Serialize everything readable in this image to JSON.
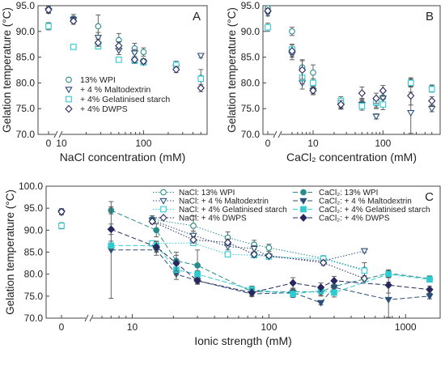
{
  "styles": {
    "13% WPI": {
      "color": "#2a8c8a",
      "marker": "circle-open"
    },
    "+ 4 % Maltodextrin": {
      "color": "#2a4f7a",
      "marker": "triangle-open"
    },
    "+ 4% Gelatinised starch": {
      "color": "#2ecbd3",
      "marker": "square-open"
    },
    "+ 4% DWPS": {
      "color": "#26285e",
      "marker": "diamond-open"
    },
    "NaCl: 13% WPI": {
      "color": "#2a8c8a",
      "marker": "circle-open",
      "dash": "dotted"
    },
    "NaCl: + 4 % Maltodextrin": {
      "color": "#2a4f7a",
      "marker": "triangle-open",
      "dash": "dotted"
    },
    "NaCl: + 4% Gelatinised starch": {
      "color": "#2ecbd3",
      "marker": "square-open",
      "dash": "dotted"
    },
    "NaCl: + 4% DWPS": {
      "color": "#26285e",
      "marker": "diamond-open",
      "dash": "dotted"
    },
    "CaCl2: 13% WPI": {
      "color": "#2a8c8a",
      "marker": "circle",
      "dash": "dashed"
    },
    "CaCl2: + 4 % Maltodextrin": {
      "color": "#2a4f7a",
      "marker": "triangle",
      "dash": "dashed"
    },
    "CaCl2: + 4% Gelatinised starch": {
      "color": "#2ecbd3",
      "marker": "square",
      "dash": "dashed"
    },
    "CaCl2: + 4% DWPS": {
      "color": "#26285e",
      "marker": "diamond",
      "dash": "dashed"
    }
  },
  "chart_data": [
    {
      "panel": "A",
      "type": "scatter",
      "xlabel": "NaCl concentration (mM)",
      "ylabel": "Gelation temperature (°C)",
      "xscale": "log-broken",
      "ylim": [
        70,
        95
      ],
      "yticks": [
        "70.0",
        "75.0",
        "80.0",
        "85.0",
        "90.0",
        "95.0"
      ],
      "xticks": [
        "0",
        "10",
        "100"
      ],
      "legend_position": "bottom-left",
      "legend": [
        "13% WPI",
        "+ 4 % Maltodextrin",
        "+ 4% Gelatinised starch",
        "+ 4% DWPS"
      ],
      "series": [
        {
          "name": "13% WPI",
          "x": [
            0,
            14,
            28,
            50,
            78,
            100,
            250,
            500
          ],
          "y": [
            94.3,
            92.5,
            91.0,
            88.3,
            86.7,
            86.0,
            83.6,
            81.0
          ],
          "err": [
            0.6,
            0.8,
            2.2,
            1.3,
            1.0,
            0.8,
            0.6,
            1.6
          ]
        },
        {
          "name": "+ 4 % Maltodextrin",
          "x": [
            0,
            14,
            28,
            50,
            78,
            100,
            250,
            500
          ],
          "y": [
            94.0,
            92.3,
            88.8,
            86.3,
            85.8,
            84.0,
            83.0,
            85.3
          ],
          "err": [
            0.5,
            0.6,
            1.0,
            0.8,
            0.7,
            0.5,
            0.6,
            0.4
          ]
        },
        {
          "name": "+ 4% Gelatinised starch",
          "x": [
            0,
            14,
            28,
            50,
            78,
            100,
            250,
            500
          ],
          "y": [
            91.0,
            87.0,
            87.1,
            84.5,
            84.3,
            84.0,
            83.5,
            80.8
          ],
          "err": [
            0.7,
            0.4,
            0.5,
            0.5,
            0.4,
            0.4,
            0.4,
            0.5
          ]
        },
        {
          "name": "+ 4% DWPS",
          "x": [
            0,
            14,
            28,
            50,
            78,
            100,
            250,
            500
          ],
          "y": [
            94.2,
            92.0,
            87.8,
            87.2,
            84.5,
            84.2,
            82.6,
            79.0
          ],
          "err": [
            0.5,
            0.6,
            0.7,
            0.8,
            0.6,
            0.5,
            0.6,
            0.7
          ]
        }
      ]
    },
    {
      "panel": "B",
      "type": "scatter",
      "xlabel": "CaCl2 concentration (mM)",
      "ylabel": "Gelation temperature (°C)",
      "xscale": "log-broken",
      "ylim": [
        70,
        95
      ],
      "yticks": [
        "70.0",
        "75.0",
        "80.0",
        "85.0",
        "90.0",
        "95.0"
      ],
      "xticks": [
        "0",
        "10",
        "100"
      ],
      "series": [
        {
          "name": "13% WPI",
          "x": [
            0,
            5,
            7,
            10,
            25,
            50,
            80,
            100,
            250,
            500
          ],
          "y": [
            94.5,
            90.0,
            83.0,
            82.0,
            76.0,
            76.0,
            76.0,
            77.2,
            80.2,
            79.0
          ],
          "err": [
            0.5,
            0.8,
            1.5,
            1.5,
            0.8,
            1.0,
            1.0,
            1.0,
            0.8,
            0.6
          ]
        },
        {
          "name": "+ 4 % Maltodextrin",
          "x": [
            0,
            5,
            7,
            10,
            25,
            50,
            80,
            100,
            250,
            500
          ],
          "y": [
            93.5,
            85.5,
            80.0,
            78.5,
            75.5,
            75.8,
            73.5,
            77.0,
            74.2,
            75.0
          ],
          "err": [
            0.5,
            1.0,
            1.2,
            0.8,
            0.6,
            0.8,
            0.5,
            1.5,
            4.0,
            0.6
          ]
        },
        {
          "name": "+ 4% Gelatinised starch",
          "x": [
            0,
            5,
            7,
            10,
            25,
            50,
            80,
            100,
            250,
            500
          ],
          "y": [
            90.8,
            86.5,
            81.0,
            80.0,
            76.5,
            75.5,
            76.2,
            75.8,
            80.0,
            78.8
          ],
          "err": [
            0.8,
            1.0,
            1.2,
            0.8,
            0.8,
            0.8,
            1.0,
            1.0,
            0.8,
            0.6
          ]
        },
        {
          "name": "+ 4% DWPS",
          "x": [
            0,
            5,
            7,
            10,
            25,
            50,
            80,
            100,
            250,
            500
          ],
          "y": [
            94.0,
            86.2,
            82.5,
            78.5,
            75.8,
            78.0,
            77.0,
            78.5,
            77.5,
            76.5
          ],
          "err": [
            0.5,
            1.2,
            1.8,
            0.6,
            0.8,
            1.2,
            1.0,
            1.0,
            1.8,
            0.8
          ]
        }
      ]
    },
    {
      "panel": "C",
      "type": "line",
      "xlabel": "Ionic strength (mM)",
      "ylabel": "Gelation temperature (°C)",
      "xscale": "log-broken",
      "ylim": [
        70,
        100
      ],
      "yticks": [
        "70.0",
        "75.0",
        "80.0",
        "85.0",
        "90.0",
        "95.0",
        "100.0"
      ],
      "xticks": [
        "0",
        "10",
        "100",
        "1000"
      ],
      "legend_position": "top",
      "legend": [
        "NaCl: 13% WPI",
        "NaCl: + 4 % Maltodextrin",
        "NaCl: + 4% Gelatinised starch",
        "NaCl: + 4% DWPS",
        "CaCl2: 13% WPI",
        "CaCl2: + 4 % Maltodextrin",
        "CaCl2: + 4% Gelatinised starch",
        "CaCl2: + 4% DWPS"
      ],
      "zero_points": [
        {
          "name": "13% WPI",
          "y": 94.3,
          "err": 0.6
        },
        {
          "name": "+ 4 % Maltodextrin",
          "y": 94.0,
          "err": 0.5
        },
        {
          "name": "+ 4% Gelatinised starch",
          "y": 91.0,
          "err": 0.7
        },
        {
          "name": "+ 4% DWPS",
          "y": 94.2,
          "err": 0.5
        }
      ],
      "series": [
        {
          "name": "NaCl: 13% WPI",
          "x": [
            14,
            28,
            50,
            78,
            100,
            250,
            500
          ],
          "y": [
            92.5,
            91.0,
            88.3,
            86.7,
            86.0,
            83.6,
            81.0
          ],
          "err": [
            0.8,
            2.2,
            1.3,
            1.0,
            0.8,
            0.6,
            1.6
          ]
        },
        {
          "name": "NaCl: + 4 % Maltodextrin",
          "x": [
            14,
            28,
            50,
            78,
            100,
            250,
            500
          ],
          "y": [
            92.3,
            88.8,
            86.3,
            85.8,
            84.0,
            83.0,
            85.3
          ],
          "err": [
            0.6,
            1.0,
            0.8,
            0.7,
            0.5,
            0.6,
            0.4
          ]
        },
        {
          "name": "NaCl: + 4% Gelatinised starch",
          "x": [
            14,
            28,
            50,
            78,
            100,
            250,
            500
          ],
          "y": [
            87.0,
            87.1,
            84.5,
            84.3,
            84.0,
            83.5,
            80.8
          ],
          "err": [
            0.4,
            0.5,
            0.5,
            0.4,
            0.4,
            0.4,
            0.5
          ]
        },
        {
          "name": "NaCl: + 4% DWPS",
          "x": [
            14,
            28,
            50,
            78,
            100,
            250,
            500
          ],
          "y": [
            92.0,
            87.8,
            87.2,
            84.5,
            84.2,
            82.6,
            79.0
          ],
          "err": [
            0.6,
            0.7,
            0.8,
            0.6,
            0.5,
            0.6,
            0.7
          ]
        },
        {
          "name": "CaCl2: 13% WPI",
          "x": [
            7,
            15,
            21,
            30,
            75,
            150,
            240,
            300,
            750,
            1500
          ],
          "y": [
            94.5,
            90.0,
            83.0,
            82.0,
            76.0,
            76.0,
            76.0,
            77.2,
            80.2,
            79.0
          ],
          "err": [
            0.8,
            1.5,
            2.0,
            3.5,
            0.8,
            0.8,
            1.0,
            1.0,
            0.8,
            0.6
          ]
        },
        {
          "name": "CaCl2: + 4 % Maltodextrin",
          "x": [
            7,
            15,
            21,
            30,
            75,
            150,
            240,
            300,
            750,
            1500
          ],
          "y": [
            85.5,
            85.5,
            80.0,
            78.5,
            75.5,
            75.8,
            73.5,
            77.0,
            74.2,
            75.0
          ],
          "err": [
            11.0,
            1.2,
            1.2,
            0.8,
            0.6,
            0.8,
            0.5,
            1.5,
            4.0,
            0.6
          ]
        },
        {
          "name": "CaCl2: + 4% Gelatinised starch",
          "x": [
            7,
            15,
            21,
            30,
            75,
            150,
            240,
            300,
            750,
            1500
          ],
          "y": [
            86.5,
            86.5,
            81.0,
            80.0,
            76.5,
            75.5,
            76.2,
            75.8,
            80.0,
            78.8
          ],
          "err": [
            1.0,
            1.0,
            1.2,
            0.8,
            0.8,
            0.8,
            1.0,
            1.0,
            0.8,
            0.6
          ]
        },
        {
          "name": "CaCl2: + 4% DWPS",
          "x": [
            7,
            15,
            21,
            30,
            75,
            150,
            240,
            300,
            750,
            1500
          ],
          "y": [
            90.2,
            86.2,
            82.5,
            78.5,
            75.8,
            78.0,
            77.0,
            78.5,
            77.5,
            76.5
          ],
          "err": [
            1.2,
            1.2,
            1.8,
            0.6,
            0.8,
            1.2,
            1.0,
            1.0,
            1.8,
            0.8
          ]
        }
      ]
    }
  ]
}
